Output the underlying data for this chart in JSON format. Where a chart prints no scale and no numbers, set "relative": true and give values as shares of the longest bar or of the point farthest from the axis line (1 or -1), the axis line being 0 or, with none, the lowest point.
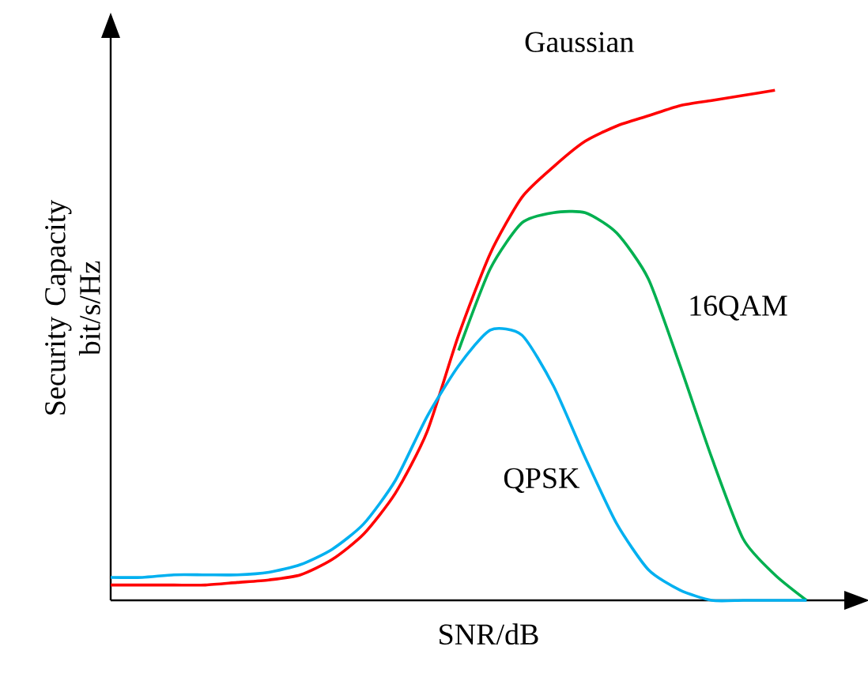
{
  "chart_data": {
    "type": "line",
    "relative": true,
    "xlabel": "SNR/dB",
    "ylabel": "Security Capacity\nbit/s/Hz",
    "categories": [
      null,
      null,
      null,
      null,
      null,
      null,
      null,
      null,
      null,
      null,
      null,
      null,
      null,
      null,
      null,
      null,
      null,
      null,
      null,
      null,
      null,
      null,
      null
    ],
    "series": [
      {
        "name": "Gaussian",
        "color": "#ff0000",
        "values": [
          0.03,
          0.03,
          0.03,
          0.03,
          0.035,
          0.04,
          0.05,
          0.08,
          0.13,
          0.21,
          0.33,
          0.52,
          0.68,
          0.79,
          0.85,
          0.9,
          0.93,
          0.95,
          0.97,
          0.98,
          0.99,
          1.0,
          null
        ]
      },
      {
        "name": "16QAM",
        "color": "#00b050",
        "values": [
          null,
          null,
          null,
          null,
          null,
          null,
          null,
          null,
          null,
          null,
          null,
          0.49,
          0.65,
          0.74,
          0.76,
          0.76,
          0.72,
          0.63,
          0.46,
          0.28,
          0.12,
          0.05,
          0.0
        ]
      },
      {
        "name": "QPSK",
        "color": "#00b0f0",
        "values": [
          0.045,
          0.045,
          0.05,
          0.05,
          0.05,
          0.055,
          0.07,
          0.1,
          0.15,
          0.235,
          0.36,
          0.46,
          0.53,
          0.52,
          0.42,
          0.28,
          0.15,
          0.06,
          0.02,
          0.0,
          0.0,
          0.0,
          0.0
        ]
      }
    ],
    "marker": "none",
    "line_style": "solid"
  }
}
